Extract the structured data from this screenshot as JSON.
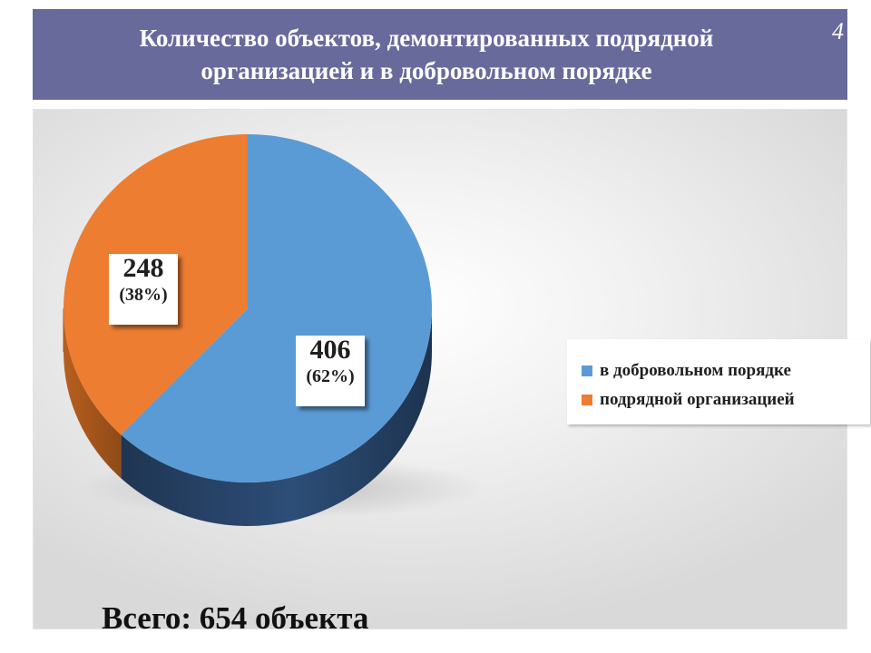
{
  "header": {
    "title_line1": "Количество объектов, демонтированных подрядной",
    "title_line2": "организацией и в добровольном порядке",
    "page_number": "4"
  },
  "colors": {
    "header_bg": "#686a9c",
    "series_voluntary": "#5b9bd5",
    "series_contractor": "#ed7d31"
  },
  "chart_data": {
    "type": "pie",
    "style": "3d",
    "legend_position": "right",
    "series": [
      {
        "name": "в добровольном порядке",
        "value": 406,
        "percent_label": "(62%)"
      },
      {
        "name": "подрядной организацией",
        "value": 248,
        "percent_label": "(38%)"
      }
    ]
  },
  "footer": {
    "total": "Всего: 654 объекта"
  }
}
